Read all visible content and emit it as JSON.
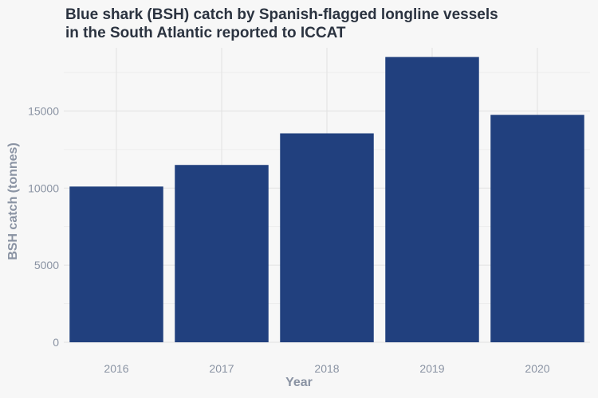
{
  "chart_data": {
    "type": "bar",
    "title": "Blue shark (BSH) catch by Spanish-flagged longline vessels in the South Atlantic reported to ICCAT",
    "title_lines": [
      "Blue shark (BSH) catch by Spanish-flagged longline vessels",
      "in the South Atlantic reported to ICCAT"
    ],
    "xlabel": "Year",
    "ylabel": "BSH catch (tonnes)",
    "categories": [
      "2016",
      "2017",
      "2018",
      "2019",
      "2020"
    ],
    "values": [
      10100,
      11500,
      13550,
      18500,
      14750
    ],
    "ylim": [
      0,
      19100
    ],
    "yticks": [
      0,
      5000,
      10000,
      15000
    ],
    "bar_color": "#21407e",
    "grid": true,
    "legend": "none"
  }
}
